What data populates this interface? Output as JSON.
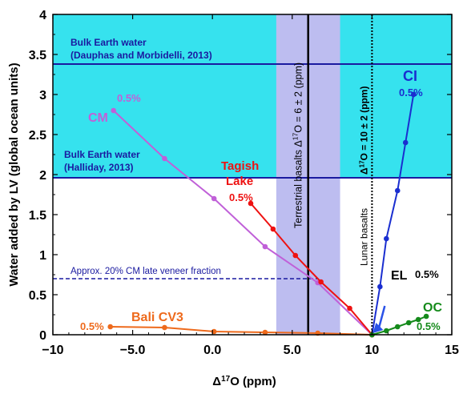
{
  "chart_data": {
    "type": "scatter",
    "xlabel_main": "Δ",
    "xlabel_sup": "17",
    "xlabel_rest": "O (ppm)",
    "ylabel": "Water added by LV (global ocean units)",
    "xlim": [
      -10,
      15
    ],
    "ylim": [
      0,
      4
    ],
    "x_ticks": [
      -10,
      -5,
      0,
      5,
      10,
      15
    ],
    "x_tick_labels": [
      "−10",
      "−5.0",
      "0.0",
      "5.0",
      "10",
      "15"
    ],
    "y_ticks": [
      0,
      0.5,
      1,
      1.5,
      2,
      2.5,
      3,
      3.5,
      4
    ],
    "y_tick_labels": [
      "0",
      "0.5",
      "1",
      "1.5",
      "2",
      "2.5",
      "3",
      "3.5",
      "4"
    ],
    "colors": {
      "cyan": "#36e2ee",
      "band": "#bdbdf0",
      "navy": "#1a1aa0",
      "cm": "#c060d8",
      "tagish": "#ee1111",
      "ci": "#1a2ed0",
      "bali": "#ee6a1c",
      "oc": "#148a1a",
      "el": "#2a52e8"
    },
    "regions": {
      "cyan_fill": {
        "from_y": 1.95,
        "to_y": 4
      },
      "terrestrial_band": {
        "from_x": 4,
        "to_x": 8
      },
      "terrestrial_line_x": 6,
      "lunar_line_x": 10,
      "bulk_line_dauphas_y": 3.38,
      "bulk_line_halliday_y": 1.96,
      "veneer_line": {
        "x_from": -10,
        "x_to": 6.6,
        "y": 0.7
      }
    },
    "series": [
      {
        "key": "cm",
        "name": "CM",
        "pct": "0.5%",
        "x": [
          -6.2,
          -3.0,
          0.1,
          3.3,
          6.6,
          10.0
        ],
        "y": [
          2.8,
          2.2,
          1.7,
          1.1,
          0.65,
          0.0
        ]
      },
      {
        "key": "tagish",
        "name_line1": "Tagish",
        "name_line2": "Lake",
        "pct": "0.5%",
        "x": [
          2.4,
          3.8,
          5.2,
          6.8,
          8.6,
          10.0
        ],
        "y": [
          1.64,
          1.32,
          0.99,
          0.66,
          0.33,
          0.0
        ]
      },
      {
        "key": "ci",
        "name": "CI",
        "pct": "0.5%",
        "x": [
          10.0,
          10.5,
          10.9,
          11.6,
          12.1,
          12.6
        ],
        "y": [
          0.0,
          0.6,
          1.2,
          1.8,
          2.4,
          3.0
        ]
      },
      {
        "key": "bali",
        "name": "Bali CV3",
        "pct": "0.5%",
        "x": [
          -6.4,
          -3.0,
          0.1,
          3.3,
          6.6,
          10.0
        ],
        "y": [
          0.1,
          0.09,
          0.04,
          0.03,
          0.02,
          0.0
        ]
      },
      {
        "key": "oc",
        "name": "OC",
        "pct": "0.5%",
        "x": [
          10.0,
          10.9,
          11.6,
          12.3,
          12.9,
          13.4
        ],
        "y": [
          0.0,
          0.05,
          0.1,
          0.15,
          0.19,
          0.23
        ]
      }
    ],
    "el_arrow": {
      "from": [
        10.8,
        0.36
      ],
      "to": [
        10.05,
        0.02
      ]
    },
    "labels": {
      "bulk_dauphas_1": "Bulk Earth water",
      "bulk_dauphas_2": "(Dauphas and Morbidelli, 2013)",
      "bulk_halliday_1": "Bulk Earth water",
      "bulk_halliday_2": "(Halliday, 2013)",
      "veneer": "Approx. 20% CM late veneer fraction",
      "terrestrial_pre": "Terrestrial basalts Δ",
      "terrestrial_sup": "17",
      "terrestrial_post": "O = 6 ± 2 (ppm)",
      "lunar_top_pre": "Δ",
      "lunar_top_sup": "17",
      "lunar_top_post": "O = 10 ± 2 (ppm)",
      "lunar_bottom": "Lunar basalts",
      "el": "EL",
      "el_pct": "0.5%"
    }
  }
}
